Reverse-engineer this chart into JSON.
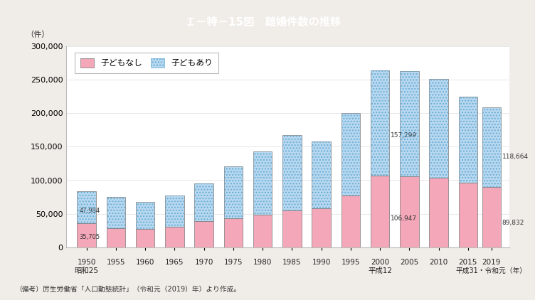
{
  "title": "Ｉ－特－15図　離婚件数の推移",
  "title_color": "#ffffff",
  "title_bg_color": "#29a8b0",
  "ylabel": "（件）",
  "years": [
    1950,
    1955,
    1960,
    1965,
    1970,
    1975,
    1980,
    1985,
    1990,
    1995,
    2000,
    2005,
    2010,
    2015,
    2019
  ],
  "no_children": [
    35705,
    28500,
    27500,
    30500,
    38500,
    43500,
    48000,
    55000,
    57500,
    77000,
    106947,
    106000,
    104000,
    96000,
    89832
  ],
  "with_children": [
    47984,
    47000,
    40000,
    47000,
    57000,
    77000,
    95000,
    112000,
    100000,
    123000,
    157299,
    157000,
    147000,
    129000,
    118664
  ],
  "color_no_children": "#f4a7b9",
  "color_with_children_base": "#b8d8f0",
  "bg_color": "#f0ede8",
  "plot_bg_color": "#ffffff",
  "ylim": [
    0,
    300000
  ],
  "yticks": [
    0,
    50000,
    100000,
    150000,
    200000,
    250000,
    300000
  ],
  "legend_no": "子どもなし",
  "legend_with": "子どもあり",
  "footnote": "（備考）厉生労働省「人口動態統計」（令和元（2019）年）より作成。",
  "ann_1950_no": "35,705",
  "ann_1950_with": "47,984",
  "ann_2000_no": "106,947",
  "ann_2000_with": "157,299",
  "ann_2019_no": "89,832",
  "ann_2019_with": "118,664",
  "sub_1950": "昭和25",
  "sub_2000": "平成12",
  "sub_2019": "平成31・令和元（年）",
  "bar_width": 3.2
}
